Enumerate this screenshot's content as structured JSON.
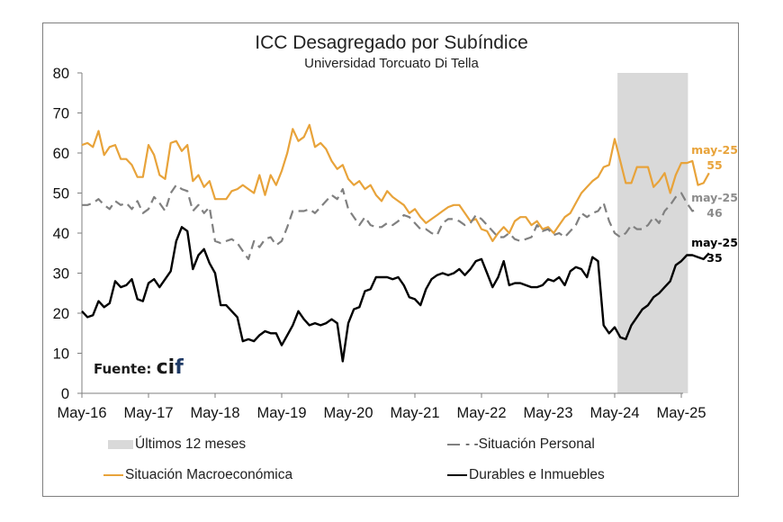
{
  "chart_data": {
    "type": "line",
    "title": "ICC Desagregado por Subíndice",
    "subtitle": "Universidad Torcuato Di Tella",
    "xlabel": "",
    "ylabel": "",
    "ylim": [
      0,
      80
    ],
    "yticks": [
      0,
      10,
      20,
      30,
      40,
      50,
      60,
      70,
      80
    ],
    "xtick_labels": [
      "May-16",
      "May-17",
      "May-18",
      "May-19",
      "May-20",
      "May-21",
      "May-22",
      "May-23",
      "May-24",
      "May-25"
    ],
    "x_start": "May-16",
    "x_end": "May-25",
    "frequency": "monthly",
    "grid": false,
    "shaded_region": {
      "label": "Últimos 12 meses",
      "from": "Jun-24",
      "to": "May-25",
      "color": "#d9d9d9"
    },
    "series": [
      {
        "name": "Situación Macroeconómica",
        "color": "#e8a33a",
        "style": "solid",
        "end_label": "may-25",
        "end_value": "55",
        "values": [
          62,
          62.5,
          61.5,
          65.5,
          59.5,
          61.5,
          62,
          58.5,
          58.5,
          57,
          54,
          54,
          62,
          59.5,
          54.5,
          53.5,
          62.5,
          63,
          60.5,
          62,
          53,
          54.5,
          51.5,
          53,
          48.5,
          48.5,
          48.5,
          50.5,
          51,
          52,
          51,
          50,
          54.5,
          49.5,
          54.5,
          52,
          55.5,
          60,
          66,
          63,
          64,
          67,
          61.5,
          62.5,
          61,
          58,
          56,
          57,
          53.5,
          52,
          53,
          51,
          52,
          49.5,
          48,
          50.5,
          49,
          48,
          47,
          45,
          46,
          44,
          42.5,
          43.5,
          44.5,
          45.5,
          46.5,
          47,
          47,
          45,
          43,
          43.5,
          41,
          40.5,
          38,
          40,
          41.5,
          40,
          43,
          44,
          44,
          42,
          43,
          41,
          41.5,
          40,
          42,
          44,
          45,
          47.5,
          50,
          51.5,
          53,
          54,
          56.5,
          57,
          63.5,
          58,
          52.5,
          52.5,
          56.5,
          56.5,
          56.5,
          51.5,
          53,
          55,
          50,
          54.5,
          57.5,
          57.5,
          58,
          52,
          52.5,
          55
        ]
      },
      {
        "name": "Situación Personal",
        "color": "#808080",
        "style": "dashed",
        "end_label": "may-25",
        "end_value": "46",
        "values": [
          47,
          47,
          47.5,
          48.5,
          47,
          46,
          48,
          47,
          47.5,
          46,
          48,
          45,
          46,
          49,
          47.5,
          45.5,
          50,
          52,
          51,
          50.5,
          45.5,
          47,
          45,
          46.5,
          38,
          37.5,
          38,
          38.5,
          37.5,
          35.5,
          33.5,
          38,
          36.5,
          38.5,
          39,
          37,
          38,
          41.5,
          45.5,
          45.5,
          45.5,
          46,
          45,
          46.5,
          48,
          49.5,
          48.5,
          51,
          46,
          44,
          42,
          44,
          42,
          41.5,
          41.5,
          42.5,
          42,
          43,
          44.5,
          44,
          42.5,
          41,
          41,
          40,
          39.5,
          42.5,
          43.5,
          43.5,
          43,
          42,
          42.5,
          44.5,
          43.5,
          42,
          40.5,
          39,
          39,
          40,
          38.5,
          38,
          38.5,
          39,
          42,
          40.5,
          41,
          39.5,
          40,
          39,
          40.5,
          42,
          45,
          44,
          45,
          45.5,
          47.5,
          43,
          40,
          39,
          40,
          42,
          41,
          41,
          42,
          44,
          42.5,
          45.5,
          47,
          49,
          50,
          47.5,
          45.5,
          46
        ]
      },
      {
        "name": "Durables e Inmuebles",
        "color": "#000000",
        "style": "solid",
        "end_label": "may-25",
        "end_value": "35",
        "values": [
          20.5,
          19,
          19.5,
          23,
          21.5,
          22.5,
          28,
          26.5,
          27,
          28.5,
          23.5,
          23,
          27.5,
          28.5,
          26.5,
          28.5,
          30.5,
          38,
          41.5,
          40.5,
          31,
          34.5,
          36,
          32.5,
          30,
          22,
          22,
          20.5,
          19,
          13,
          13.5,
          13,
          14.5,
          15.5,
          15,
          15,
          12,
          14.5,
          17,
          20.5,
          18.5,
          17,
          17.5,
          17,
          17.5,
          18.5,
          17.5,
          8,
          17.5,
          21,
          21.5,
          25.5,
          26,
          29,
          29,
          29,
          28.5,
          29,
          27,
          24,
          23.5,
          22,
          26,
          28.5,
          29.5,
          30,
          29.5,
          30,
          31,
          29.5,
          31,
          33,
          33.5,
          30,
          26.5,
          29,
          33,
          27,
          27.5,
          27.5,
          27,
          26.5,
          26.5,
          27,
          28.5,
          28,
          29,
          27,
          30.5,
          31.5,
          31,
          29,
          34,
          33,
          17,
          15,
          16.5,
          14,
          13.5,
          17,
          19,
          21,
          22,
          24,
          25,
          26.5,
          28,
          32,
          33,
          34.5,
          34.5,
          34,
          33.5,
          35
        ]
      }
    ]
  },
  "legend": {
    "shade_label": "Últimos 12 meses",
    "personal_label": "- -Situación Personal",
    "macro_label": "Situación Macroeconómica",
    "durables_label": "Durables e Inmuebles"
  },
  "source": {
    "prefix": "Fuente:",
    "logo_ci": "ci",
    "logo_f": "f"
  }
}
